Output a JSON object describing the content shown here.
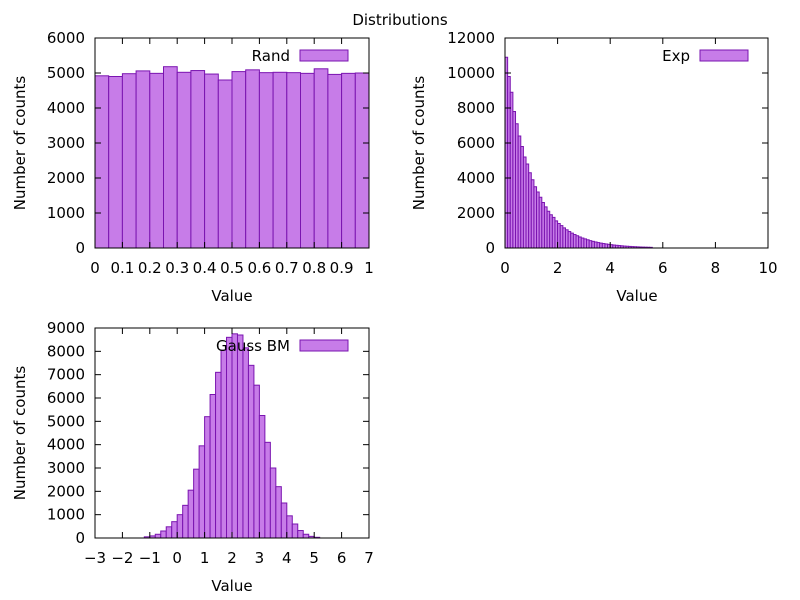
{
  "figure_title": "Distributions",
  "colors": {
    "bar_fill": "#c77ce8",
    "bar_stroke": "#7a14b0"
  },
  "chart_data": [
    {
      "type": "bar",
      "id": "rand",
      "legend": "Rand",
      "xlabel": "Value",
      "ylabel": "Number of counts",
      "xlim": [
        0,
        1
      ],
      "ylim": [
        0,
        6000
      ],
      "xticks": [
        0,
        0.1,
        0.2,
        0.3,
        0.4,
        0.5,
        0.6,
        0.7,
        0.8,
        0.9,
        1
      ],
      "xtick_labels": [
        "0",
        "0.1",
        "0.2",
        "0.3",
        "0.4",
        "0.5",
        "0.6",
        "0.7",
        "0.8",
        "0.9",
        "1"
      ],
      "yticks": [
        0,
        1000,
        2000,
        3000,
        4000,
        5000,
        6000
      ],
      "ytick_labels": [
        "0",
        "1000",
        "2000",
        "3000",
        "4000",
        "5000",
        "6000"
      ],
      "bin_start": 0,
      "bin_width": 0.05,
      "values": [
        4920,
        4900,
        4980,
        5060,
        4990,
        5180,
        5020,
        5070,
        4970,
        4800,
        5040,
        5090,
        5010,
        5020,
        5010,
        4990,
        5120,
        4960,
        4990,
        5000
      ]
    },
    {
      "type": "bar",
      "id": "exp",
      "legend": "Exp",
      "xlabel": "Value",
      "ylabel": "Number of counts",
      "xlim": [
        0,
        10
      ],
      "ylim": [
        0,
        12000
      ],
      "xticks": [
        0,
        2,
        4,
        6,
        8,
        10
      ],
      "xtick_labels": [
        "0",
        "2",
        "4",
        "6",
        "8",
        "10"
      ],
      "yticks": [
        0,
        2000,
        4000,
        6000,
        8000,
        10000,
        12000
      ],
      "ytick_labels": [
        "0",
        "2000",
        "4000",
        "6000",
        "8000",
        "10000",
        "12000"
      ],
      "bin_start": 0,
      "bin_width": 0.1,
      "values": [
        10900,
        9800,
        8900,
        7800,
        7100,
        6400,
        5800,
        5200,
        4800,
        4300,
        3900,
        3500,
        3200,
        2900,
        2600,
        2350,
        2100,
        1900,
        1750,
        1550,
        1400,
        1280,
        1150,
        1040,
        940,
        850,
        770,
        700,
        630,
        570,
        520,
        470,
        420,
        380,
        345,
        310,
        280,
        255,
        230,
        210,
        190,
        170,
        155,
        140,
        125,
        110,
        100,
        90,
        80,
        72,
        65,
        58,
        52,
        47,
        42,
        38
      ]
    },
    {
      "type": "bar",
      "id": "gauss",
      "legend": "Gauss BM",
      "xlabel": "Value",
      "ylabel": "Number of counts",
      "xlim": [
        -3,
        7
      ],
      "ylim": [
        0,
        9000
      ],
      "xticks": [
        -3,
        -2,
        -1,
        0,
        1,
        2,
        3,
        4,
        5,
        6,
        7
      ],
      "xtick_labels": [
        "−3",
        "−2",
        "−1",
        "0",
        "1",
        "2",
        "3",
        "4",
        "5",
        "6",
        "7"
      ],
      "yticks": [
        0,
        1000,
        2000,
        3000,
        4000,
        5000,
        6000,
        7000,
        8000,
        9000
      ],
      "ytick_labels": [
        "0",
        "1000",
        "2000",
        "3000",
        "4000",
        "5000",
        "6000",
        "7000",
        "8000",
        "9000"
      ],
      "bin_start": -1.2,
      "bin_width": 0.2,
      "values": [
        50,
        90,
        160,
        300,
        480,
        700,
        1000,
        1400,
        2050,
        2950,
        3950,
        5200,
        6150,
        7100,
        8050,
        8600,
        8750,
        8700,
        8150,
        7400,
        6550,
        5250,
        4100,
        3000,
        2200,
        1500,
        950,
        600,
        320,
        160,
        70,
        30
      ]
    }
  ]
}
